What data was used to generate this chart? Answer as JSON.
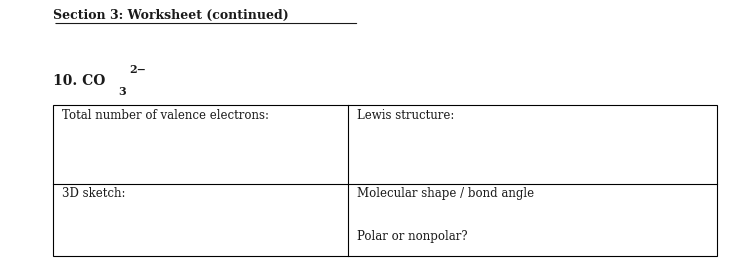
{
  "title": "Section 3: Worksheet (continued)",
  "item_label": "10. CO",
  "superscript": "2−",
  "background_color": "#ffffff",
  "table_border_color": "#000000",
  "text_color": "#1a1a1a",
  "cell_labels": {
    "top_left": "Total number of valence electrons:",
    "top_right": "Lewis structure:",
    "bottom_left": "3D sketch:",
    "bottom_right_top": "Molecular shape / bond angle",
    "bottom_right_bottom": "Polar or nonpolar?"
  },
  "title_fontsize": 9,
  "cell_fontsize": 8.5,
  "item_fontsize": 10,
  "fig_width": 7.41,
  "fig_height": 2.63,
  "dpi": 100
}
